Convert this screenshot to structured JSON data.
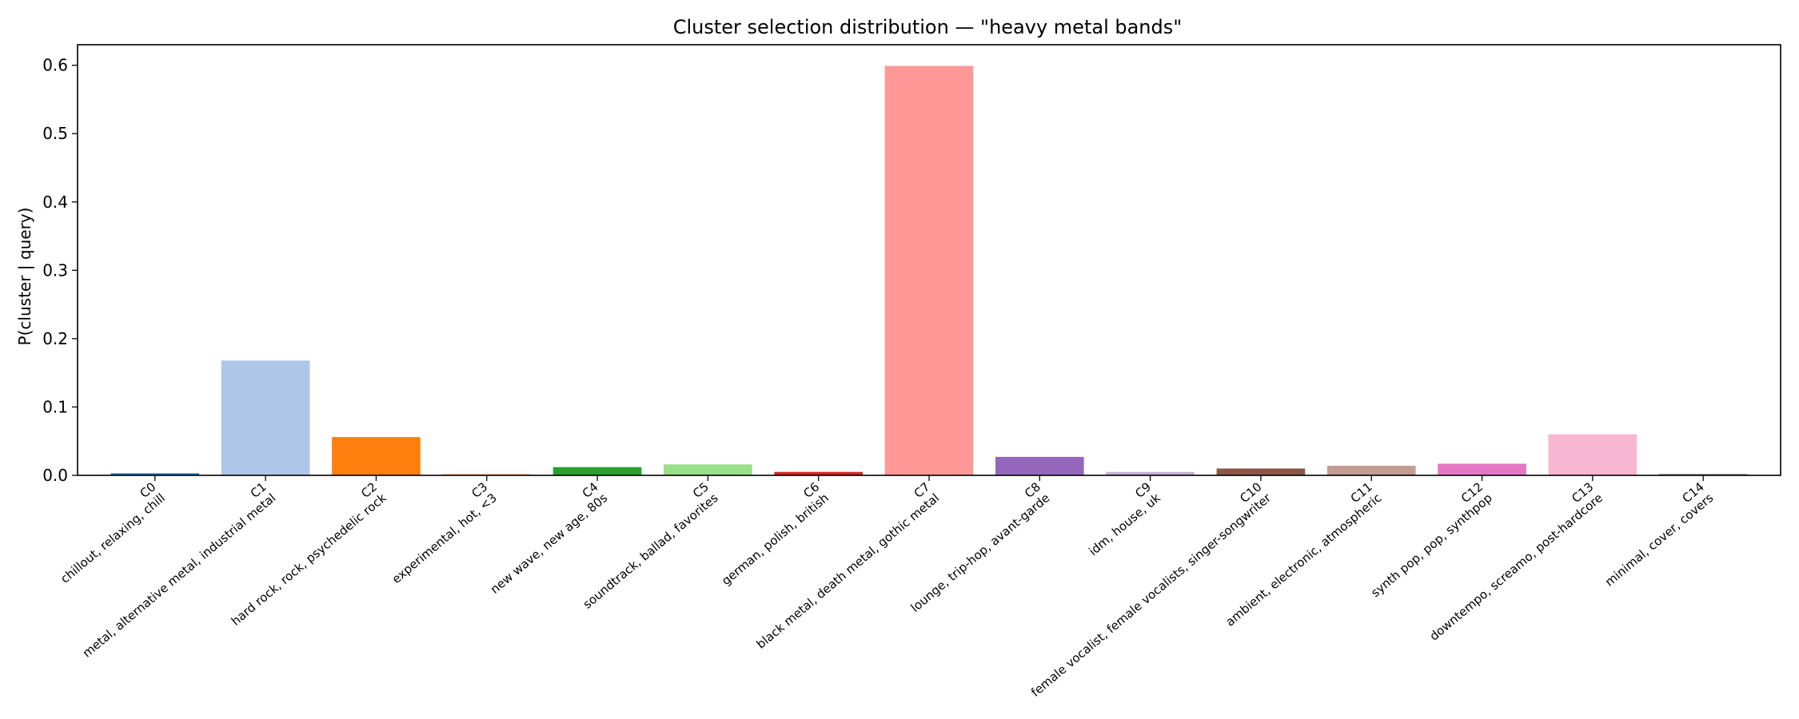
{
  "chart_data": {
    "type": "bar",
    "title": "Cluster selection distribution — \"heavy metal bands\"",
    "xlabel": "",
    "ylabel": "P(cluster | query)",
    "ylim": [
      0,
      0.63
    ],
    "yticks": [
      "0.0",
      "0.1",
      "0.2",
      "0.3",
      "0.4",
      "0.5",
      "0.6"
    ],
    "grid": false,
    "categories": [
      {
        "id": "C0",
        "tags": "chillout, relaxing, chill"
      },
      {
        "id": "C1",
        "tags": "metal, alternative metal, industrial metal"
      },
      {
        "id": "C2",
        "tags": "hard rock, rock, psychedelic rock"
      },
      {
        "id": "C3",
        "tags": "experimental, hot, <3"
      },
      {
        "id": "C4",
        "tags": "new wave, new age, 80s"
      },
      {
        "id": "C5",
        "tags": "soundtrack, ballad, favorites"
      },
      {
        "id": "C6",
        "tags": "german, polish, british"
      },
      {
        "id": "C7",
        "tags": "black metal, death metal, gothic metal"
      },
      {
        "id": "C8",
        "tags": "lounge, trip-hop, avant-garde"
      },
      {
        "id": "C9",
        "tags": "idm, house, uk"
      },
      {
        "id": "C10",
        "tags": "female vocalist, female vocalists, singer-songwriter"
      },
      {
        "id": "C11",
        "tags": "ambient, electronic, atmospheric"
      },
      {
        "id": "C12",
        "tags": "synth pop, pop, synthpop"
      },
      {
        "id": "C13",
        "tags": "downtempo, screamo, post-hardcore"
      },
      {
        "id": "C14",
        "tags": "minimal, cover, covers"
      }
    ],
    "values": [
      0.003,
      0.168,
      0.056,
      0.002,
      0.012,
      0.016,
      0.005,
      0.599,
      0.027,
      0.005,
      0.01,
      0.014,
      0.017,
      0.06,
      0.002
    ],
    "colors": [
      "#1f77b4",
      "#aec7e8",
      "#ff7f0e",
      "#ffbb78",
      "#2ca02c",
      "#98df8a",
      "#d62728",
      "#ff9896",
      "#9467bd",
      "#c5b0d5",
      "#8c564b",
      "#c49c94",
      "#e377c2",
      "#f7b6d2",
      "#7f7f7f"
    ]
  }
}
